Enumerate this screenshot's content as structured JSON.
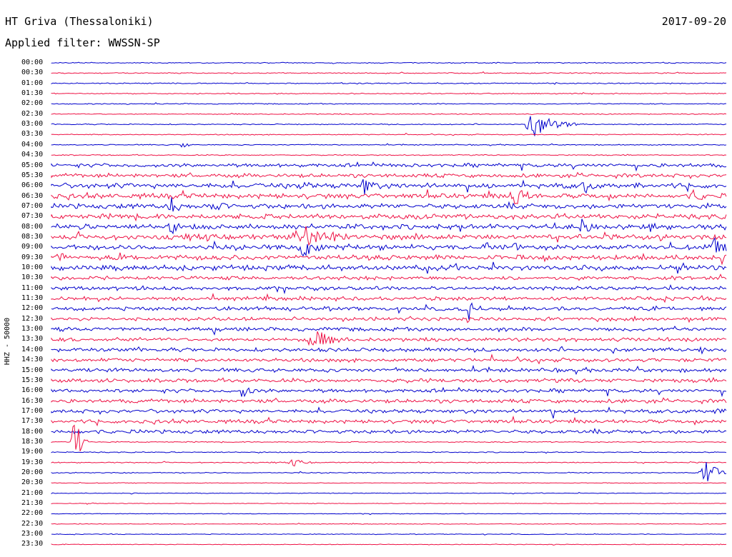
{
  "header": {
    "station": "HT Griva (Thessaloniki)",
    "date": "2017-09-20",
    "filter": "Applied filter: WWSSN-SP"
  },
  "axis": {
    "channel_label": "HHZ - 50000"
  },
  "colors": {
    "trace_a": "#0000cc",
    "trace_b": "#ee1144",
    "background": "#ffffff"
  },
  "rows": [
    {
      "time": "00:00"
    },
    {
      "time": "00:30"
    },
    {
      "time": "01:00"
    },
    {
      "time": "01:30"
    },
    {
      "time": "02:00"
    },
    {
      "time": "02:30"
    },
    {
      "time": "03:00"
    },
    {
      "time": "03:30"
    },
    {
      "time": "04:00"
    },
    {
      "time": "04:30"
    },
    {
      "time": "05:00"
    },
    {
      "time": "05:30"
    },
    {
      "time": "06:00"
    },
    {
      "time": "06:30"
    },
    {
      "time": "07:00"
    },
    {
      "time": "07:30"
    },
    {
      "time": "08:00"
    },
    {
      "time": "08:30"
    },
    {
      "time": "09:00"
    },
    {
      "time": "09:30"
    },
    {
      "time": "10:00"
    },
    {
      "time": "10:30"
    },
    {
      "time": "11:00"
    },
    {
      "time": "11:30"
    },
    {
      "time": "12:00"
    },
    {
      "time": "12:30"
    },
    {
      "time": "13:00"
    },
    {
      "time": "13:30"
    },
    {
      "time": "14:00"
    },
    {
      "time": "14:30"
    },
    {
      "time": "15:00"
    },
    {
      "time": "15:30"
    },
    {
      "time": "16:00"
    },
    {
      "time": "16:30"
    },
    {
      "time": "17:00"
    },
    {
      "time": "17:30"
    },
    {
      "time": "18:00"
    },
    {
      "time": "18:30"
    },
    {
      "time": "19:00"
    },
    {
      "time": "19:30"
    },
    {
      "time": "20:00"
    },
    {
      "time": "20:30"
    },
    {
      "time": "21:00"
    },
    {
      "time": "21:30"
    },
    {
      "time": "22:00"
    },
    {
      "time": "22:30"
    },
    {
      "time": "23:00"
    },
    {
      "time": "23:30"
    }
  ]
}
